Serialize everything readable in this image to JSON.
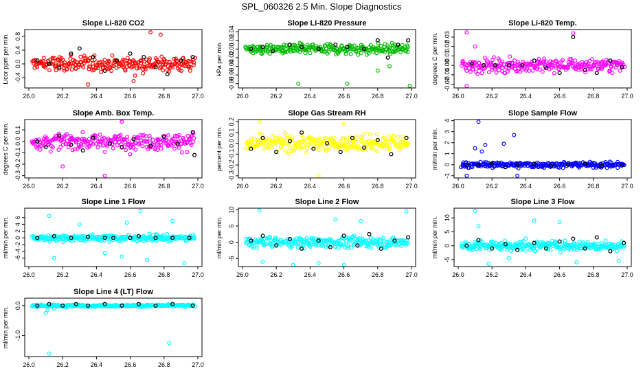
{
  "figure_title": "SPL_060326  2.5 Min. Slope Diagnostics",
  "chart_data": [
    {
      "type": "scatter",
      "title": "Slope Li-820 CO2",
      "ylabel": "Licor ppm per min.",
      "color": "#ff0000",
      "xlim": [
        26.0,
        27.0
      ],
      "xticks": [
        "26.0",
        "26.2",
        "26.4",
        "26.6",
        "26.8",
        "27.0"
      ],
      "ylim": [
        -0.7,
        1.0
      ],
      "yticks": [
        "-0.4",
        "0.0",
        "0.4",
        "0.8"
      ],
      "ytick_values": [
        -0.4,
        0.0,
        0.4,
        0.8
      ],
      "spread": 0.22,
      "outliers": [
        [
          26.35,
          -0.6
        ],
        [
          26.72,
          0.92
        ],
        [
          26.78,
          0.85
        ],
        [
          26.62,
          -0.5
        ]
      ],
      "black_points": [
        [
          26.05,
          0.1
        ],
        [
          26.12,
          0.0
        ],
        [
          26.18,
          -0.1
        ],
        [
          26.25,
          0.3
        ],
        [
          26.3,
          0.45
        ],
        [
          26.38,
          0.2
        ],
        [
          26.45,
          -0.2
        ],
        [
          26.52,
          0.1
        ],
        [
          26.6,
          0.3
        ],
        [
          26.68,
          0.2
        ],
        [
          26.75,
          -0.1
        ],
        [
          26.82,
          -0.3
        ],
        [
          26.9,
          0.1
        ],
        [
          26.97,
          0.2
        ]
      ]
    },
    {
      "type": "scatter",
      "title": "Slope Li-820 Pressure",
      "ylabel": "kPa per min.",
      "color": "#00bb00",
      "xlim": [
        26.0,
        27.0
      ],
      "xticks": [
        "26.0",
        "26.2",
        "26.4",
        "26.6",
        "26.8",
        "27.0"
      ],
      "ylim": [
        -0.09,
        0.045
      ],
      "yticks": [
        "-0.08",
        "-0.06",
        "-0.04",
        "-0.02",
        "0.00",
        "0.02",
        "0.04"
      ],
      "ytick_values": [
        -0.08,
        -0.06,
        -0.04,
        -0.02,
        0.0,
        0.02,
        0.04
      ],
      "spread": 0.012,
      "outliers": [
        [
          26.33,
          -0.08
        ],
        [
          26.62,
          -0.08
        ],
        [
          26.99,
          -0.085
        ],
        [
          26.87,
          -0.04
        ],
        [
          26.8,
          -0.05
        ]
      ],
      "black_points": [
        [
          26.05,
          0.0
        ],
        [
          26.12,
          0.005
        ],
        [
          26.18,
          -0.005
        ],
        [
          26.28,
          0.01
        ],
        [
          26.35,
          0.005
        ],
        [
          26.45,
          0.0
        ],
        [
          26.55,
          0.01
        ],
        [
          26.62,
          0.005
        ],
        [
          26.72,
          0.0
        ],
        [
          26.8,
          0.02
        ],
        [
          26.86,
          -0.02
        ],
        [
          26.92,
          0.01
        ],
        [
          26.98,
          0.02
        ]
      ]
    },
    {
      "type": "scatter",
      "title": "Slope Li-820 Temp.",
      "ylabel": "degrees C per min.",
      "color": "#ff00ff",
      "xlim": [
        26.0,
        27.0
      ],
      "xticks": [
        "26.0",
        "26.2",
        "26.4",
        "26.6",
        "26.8",
        "27.0"
      ],
      "ylim": [
        -0.024,
        0.038
      ],
      "yticks": [
        "-0.02",
        "-0.01",
        "0.00",
        "0.01",
        "0.02",
        "0.03"
      ],
      "ytick_values": [
        -0.02,
        -0.01,
        0.0,
        0.01,
        0.02,
        0.03
      ],
      "spread": 0.007,
      "outliers": [
        [
          26.05,
          -0.022
        ],
        [
          26.05,
          0.035
        ],
        [
          26.68,
          0.034
        ],
        [
          26.1,
          0.02
        ]
      ],
      "black_points": [
        [
          26.08,
          0.002
        ],
        [
          26.15,
          0.0
        ],
        [
          26.22,
          0.0
        ],
        [
          26.3,
          0.0
        ],
        [
          26.38,
          0.0
        ],
        [
          26.45,
          0.005
        ],
        [
          26.52,
          -0.003
        ],
        [
          26.6,
          -0.008
        ],
        [
          26.68,
          0.03
        ],
        [
          26.75,
          -0.005
        ],
        [
          26.82,
          -0.008
        ],
        [
          26.9,
          0.005
        ],
        [
          26.97,
          -0.002
        ]
      ]
    },
    {
      "type": "scatter",
      "title": "Slope Amb. Box Temp.",
      "ylabel": "degrees C per min.",
      "color": "#ff00ff",
      "xlim": [
        26.0,
        27.0
      ],
      "xticks": [
        "26.0",
        "26.2",
        "26.4",
        "26.6",
        "26.8",
        "27.0"
      ],
      "ylim": [
        -0.32,
        0.19
      ],
      "yticks": [
        "-0.3",
        "-0.2",
        "-0.1",
        "0.0",
        "0.1"
      ],
      "ytick_values": [
        -0.3,
        -0.2,
        -0.1,
        0.0,
        0.1
      ],
      "spread": 0.07,
      "outliers": [
        [
          26.45,
          -0.3
        ],
        [
          26.55,
          0.17
        ],
        [
          26.2,
          -0.22
        ]
      ],
      "black_points": [
        [
          26.05,
          0.0
        ],
        [
          26.1,
          -0.05
        ],
        [
          26.18,
          0.05
        ],
        [
          26.25,
          -0.03
        ],
        [
          26.32,
          -0.08
        ],
        [
          26.38,
          0.03
        ],
        [
          26.48,
          -0.02
        ],
        [
          26.55,
          -0.05
        ],
        [
          26.62,
          0.02
        ],
        [
          26.72,
          -0.04
        ],
        [
          26.8,
          0.04
        ],
        [
          26.88,
          -0.02
        ],
        [
          26.97,
          0.08
        ],
        [
          26.98,
          -0.12
        ]
      ]
    },
    {
      "type": "scatter",
      "title": "Slope Gas Stream RH",
      "ylabel": "percent per min.",
      "color": "#ffff00",
      "xlim": [
        26.0,
        27.0
      ],
      "xticks": [
        "26.0",
        "26.2",
        "26.4",
        "26.6",
        "26.8",
        "27.0"
      ],
      "ylim": [
        -0.32,
        0.22
      ],
      "yticks": [
        "-0.3",
        "-0.2",
        "-0.1",
        "0.0",
        "0.1",
        "0.2"
      ],
      "ytick_values": [
        -0.3,
        -0.2,
        -0.1,
        0.0,
        0.1,
        0.2
      ],
      "spread": 0.075,
      "outliers": [
        [
          26.45,
          -0.3
        ],
        [
          26.1,
          0.2
        ],
        [
          26.6,
          0.18
        ]
      ],
      "black_points": [
        [
          26.05,
          -0.05
        ],
        [
          26.12,
          0.05
        ],
        [
          26.2,
          -0.08
        ],
        [
          26.28,
          0.02
        ],
        [
          26.35,
          0.1
        ],
        [
          26.42,
          -0.05
        ],
        [
          26.5,
          0.0
        ],
        [
          26.58,
          -0.08
        ],
        [
          26.65,
          0.05
        ],
        [
          26.72,
          -0.04
        ],
        [
          26.8,
          0.03
        ],
        [
          26.88,
          -0.1
        ],
        [
          26.97,
          0.05
        ]
      ]
    },
    {
      "type": "scatter",
      "title": "Slope Sample Flow",
      "ylabel": "ml/min per min.",
      "color": "#0000ff",
      "xlim": [
        26.0,
        27.0
      ],
      "xticks": [
        "26.0",
        "26.2",
        "26.4",
        "26.6",
        "26.8",
        "27.0"
      ],
      "ylim": [
        -1.2,
        4.1
      ],
      "yticks": [
        "-1",
        "0",
        "1",
        "2",
        "3",
        "4"
      ],
      "ytick_values": [
        -1,
        0,
        1,
        2,
        3,
        4
      ],
      "spread": 0.25,
      "outliers": [
        [
          26.12,
          3.9
        ],
        [
          26.33,
          2.7
        ],
        [
          26.1,
          1.5
        ],
        [
          26.14,
          1.2
        ],
        [
          26.16,
          1.8
        ],
        [
          26.27,
          1.9
        ],
        [
          26.05,
          -1.0
        ],
        [
          26.35,
          -1.0
        ]
      ],
      "black_points": [
        [
          26.05,
          0.0
        ],
        [
          26.12,
          -0.1
        ],
        [
          26.2,
          0.1
        ],
        [
          26.28,
          -0.2
        ],
        [
          26.35,
          0.0
        ],
        [
          26.45,
          0.1
        ],
        [
          26.55,
          -0.1
        ],
        [
          26.65,
          0.0
        ],
        [
          26.75,
          0.1
        ],
        [
          26.85,
          -0.1
        ],
        [
          26.97,
          0.0
        ]
      ]
    },
    {
      "type": "scatter",
      "title": "Slope Line 1 Flow",
      "ylabel": "ml/min per min.",
      "color": "#00ffff",
      "xlim": [
        26.0,
        27.0
      ],
      "xticks": [
        "26.0",
        "26.2",
        "26.4",
        "26.6",
        "26.8",
        "27.0"
      ],
      "ylim": [
        -8.5,
        8.8
      ],
      "yticks": [
        "-6",
        "-4",
        "-2",
        "0",
        "2",
        "4",
        "6"
      ],
      "ytick_values": [
        -6,
        -4,
        -2,
        0,
        2,
        4,
        6
      ],
      "spread": 0.9,
      "outliers": [
        [
          26.12,
          6.5
        ],
        [
          26.15,
          -6.0
        ],
        [
          26.55,
          -5.5
        ],
        [
          26.58,
          4.5
        ],
        [
          26.66,
          8.0
        ],
        [
          26.7,
          -6.5
        ],
        [
          26.85,
          5.0
        ],
        [
          26.92,
          -7.5
        ],
        [
          26.3,
          4.0
        ],
        [
          26.45,
          -4.5
        ]
      ],
      "black_points": [
        [
          26.05,
          0.0
        ],
        [
          26.15,
          0.5
        ],
        [
          26.25,
          0.0
        ],
        [
          26.35,
          0.3
        ],
        [
          26.45,
          0.0
        ],
        [
          26.5,
          0.0
        ],
        [
          26.6,
          0.0
        ],
        [
          26.65,
          0.5
        ],
        [
          26.75,
          0.0
        ],
        [
          26.85,
          0.0
        ],
        [
          26.95,
          0.0
        ]
      ]
    },
    {
      "type": "scatter",
      "title": "Slope Line 2 Flow",
      "ylabel": "ml/min per min.",
      "color": "#00ffff",
      "xlim": [
        26.0,
        27.0
      ],
      "xticks": [
        "26.0",
        "26.2",
        "26.4",
        "26.6",
        "26.8",
        "27.0"
      ],
      "ylim": [
        -7.5,
        10.5
      ],
      "yticks": [
        "-5",
        "0",
        "5",
        "10"
      ],
      "ytick_values": [
        -5,
        0,
        5,
        10
      ],
      "spread": 1.6,
      "outliers": [
        [
          26.1,
          9.8
        ],
        [
          26.12,
          -6.0
        ],
        [
          26.3,
          -7.0
        ],
        [
          26.45,
          -6.5
        ],
        [
          26.6,
          -7.0
        ],
        [
          26.97,
          9.5
        ],
        [
          26.7,
          6.5
        ],
        [
          26.55,
          7.0
        ]
      ],
      "black_points": [
        [
          26.05,
          0.5
        ],
        [
          26.12,
          2.0
        ],
        [
          26.2,
          -1.0
        ],
        [
          26.28,
          1.0
        ],
        [
          26.35,
          -2.0
        ],
        [
          26.45,
          0.5
        ],
        [
          26.52,
          -1.5
        ],
        [
          26.6,
          2.0
        ],
        [
          26.68,
          -1.0
        ],
        [
          26.75,
          2.5
        ],
        [
          26.82,
          -2.0
        ],
        [
          26.9,
          0.5
        ],
        [
          26.98,
          1.5
        ]
      ]
    },
    {
      "type": "scatter",
      "title": "Slope Line 3 Flow",
      "ylabel": "ml/min per min.",
      "color": "#00ffff",
      "xlim": [
        26.0,
        27.0
      ],
      "xticks": [
        "26.0",
        "26.2",
        "26.4",
        "26.6",
        "26.8",
        "27.0"
      ],
      "ylim": [
        -7.5,
        13.5
      ],
      "yticks": [
        "-5",
        "0",
        "5",
        "10"
      ],
      "ytick_values": [
        -5,
        0,
        5,
        10
      ],
      "spread": 1.8,
      "outliers": [
        [
          26.1,
          12.5
        ],
        [
          26.12,
          7.0
        ],
        [
          26.18,
          -6.5
        ],
        [
          26.45,
          9.0
        ],
        [
          26.6,
          8.5
        ],
        [
          26.7,
          -6.0
        ],
        [
          26.95,
          -5.5
        ],
        [
          26.3,
          -4.5
        ]
      ],
      "black_points": [
        [
          26.05,
          0.0
        ],
        [
          26.12,
          2.0
        ],
        [
          26.2,
          -1.0
        ],
        [
          26.28,
          0.5
        ],
        [
          26.35,
          -1.5
        ],
        [
          26.45,
          1.0
        ],
        [
          26.52,
          -1.0
        ],
        [
          26.6,
          1.5
        ],
        [
          26.68,
          2.5
        ],
        [
          26.75,
          -1.0
        ],
        [
          26.82,
          3.0
        ],
        [
          26.9,
          -2.0
        ],
        [
          26.98,
          1.0
        ]
      ]
    },
    {
      "type": "scatter",
      "title": "Slope Line 4 (LT) Flow",
      "ylabel": "ml/min per min.",
      "color": "#00ffff",
      "xlim": [
        26.0,
        27.0
      ],
      "xticks": [
        "26.0",
        "26.2",
        "26.4",
        "26.6",
        "26.8",
        "27.0"
      ],
      "ylim": [
        -1.7,
        0.25
      ],
      "yticks": [
        "-1.0",
        "0.0"
      ],
      "ytick_values": [
        -1.0,
        0.0
      ],
      "spread": 0.035,
      "outliers": [
        [
          26.12,
          -1.6
        ],
        [
          26.83,
          -1.25
        ],
        [
          26.11,
          -0.15
        ],
        [
          26.1,
          -0.25
        ],
        [
          26.15,
          -0.1
        ]
      ],
      "black_points": [
        [
          26.05,
          0.0
        ],
        [
          26.12,
          0.05
        ],
        [
          26.2,
          0.0
        ],
        [
          26.28,
          0.05
        ],
        [
          26.35,
          0.0
        ],
        [
          26.45,
          0.05
        ],
        [
          26.55,
          0.0
        ],
        [
          26.65,
          0.05
        ],
        [
          26.75,
          0.0
        ],
        [
          26.85,
          0.05
        ],
        [
          26.97,
          0.0
        ]
      ]
    }
  ]
}
